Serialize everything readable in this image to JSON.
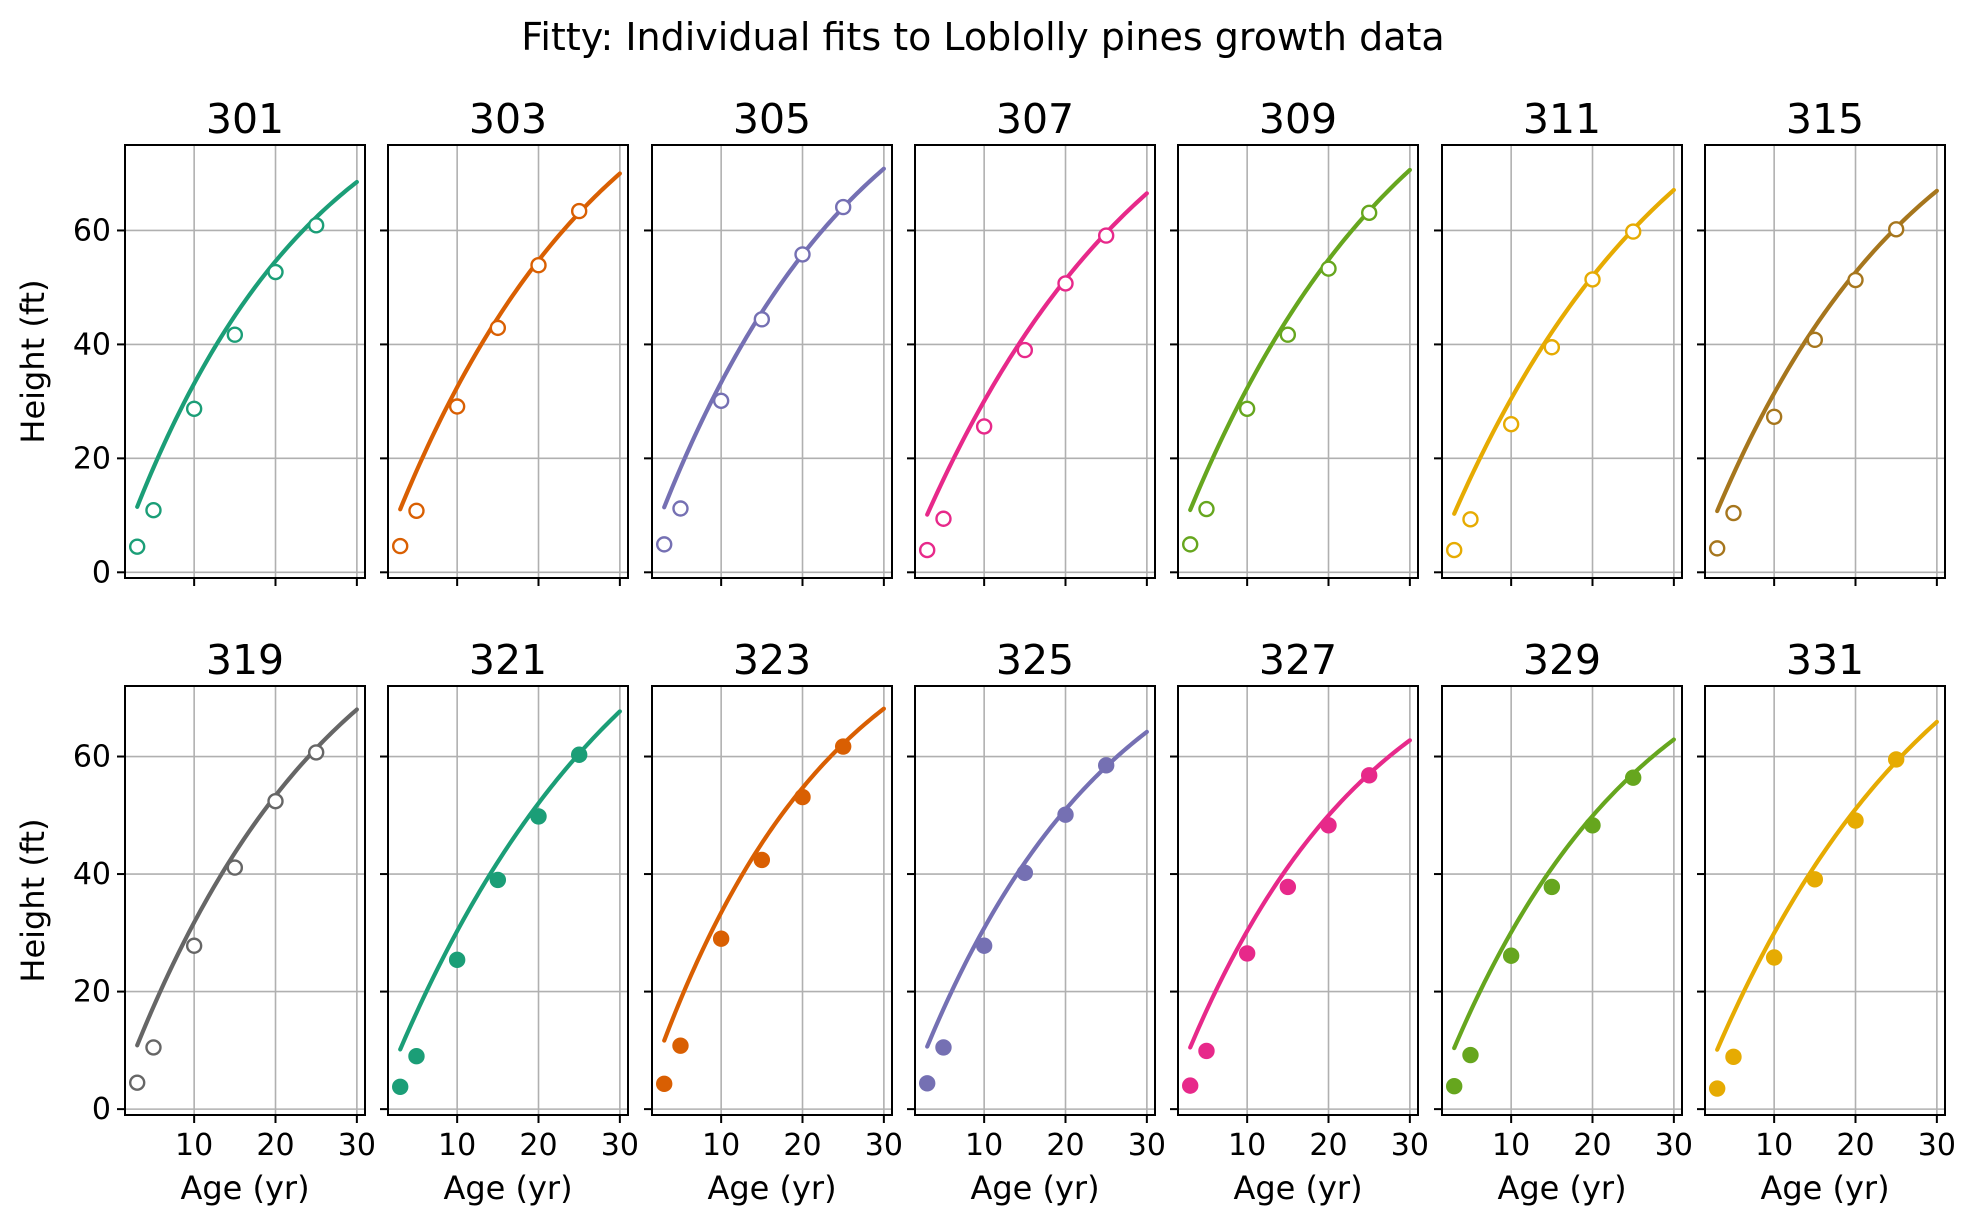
{
  "figure_title": "Fitty: Individual fits to Loblolly pines growth data",
  "colors": {
    "teal": "#1b9e77",
    "orange": "#d95f02",
    "purple": "#7570b3",
    "pink": "#e7298a",
    "green": "#66a61e",
    "yellow": "#e6ab02",
    "brown": "#a6761d",
    "gray": "#666666"
  },
  "chart_data": [
    {
      "type": "line",
      "title": "301",
      "color": "#1b9e77",
      "marker": "open",
      "x": [
        3,
        5,
        10,
        15,
        20,
        25
      ],
      "y": [
        4.5,
        10.9,
        28.7,
        41.7,
        52.7,
        60.9
      ],
      "fit": {
        "asym": 94.1,
        "rate": 0.0434,
        "tmin": 3,
        "tmax": 30
      },
      "xlim": [
        1.5,
        31
      ],
      "ylim": [
        -1,
        75
      ],
      "xticks": [
        10,
        20,
        30
      ],
      "yticks": [
        0,
        20,
        40,
        60
      ],
      "xlabel": "",
      "ylabel": "Height (ft)"
    },
    {
      "type": "line",
      "title": "303",
      "color": "#d95f02",
      "marker": "open",
      "x": [
        3,
        5,
        10,
        15,
        20,
        25
      ],
      "y": [
        4.6,
        10.8,
        29.1,
        42.9,
        53.9,
        63.4
      ],
      "fit": {
        "asym": 103.2,
        "rate": 0.0378,
        "tmin": 3,
        "tmax": 30
      },
      "xlim": [
        1.5,
        31
      ],
      "ylim": [
        -1,
        75
      ],
      "xticks": [
        10,
        20,
        30
      ],
      "yticks": [
        0,
        20,
        40,
        60
      ],
      "xlabel": "",
      "ylabel": ""
    },
    {
      "type": "line",
      "title": "305",
      "color": "#7570b3",
      "marker": "open",
      "x": [
        3,
        5,
        10,
        15,
        20,
        25
      ],
      "y": [
        4.9,
        11.2,
        30.1,
        44.4,
        55.8,
        64.1
      ],
      "fit": {
        "asym": 101.9,
        "rate": 0.0396,
        "tmin": 3,
        "tmax": 30
      },
      "xlim": [
        1.5,
        31
      ],
      "ylim": [
        -1,
        75
      ],
      "xticks": [
        10,
        20,
        30
      ],
      "yticks": [
        0,
        20,
        40,
        60
      ],
      "xlabel": "",
      "ylabel": ""
    },
    {
      "type": "line",
      "title": "307",
      "color": "#e7298a",
      "marker": "open",
      "x": [
        3,
        5,
        10,
        15,
        20,
        25
      ],
      "y": [
        3.9,
        9.4,
        25.6,
        39.0,
        50.7,
        59.1
      ],
      "fit": {
        "asym": 103.5,
        "rate": 0.0343,
        "tmin": 3,
        "tmax": 30
      },
      "xlim": [
        1.5,
        31
      ],
      "ylim": [
        -1,
        75
      ],
      "xticks": [
        10,
        20,
        30
      ],
      "yticks": [
        0,
        20,
        40,
        60
      ],
      "xlabel": "",
      "ylabel": ""
    },
    {
      "type": "line",
      "title": "309",
      "color": "#66a61e",
      "marker": "open",
      "x": [
        3,
        5,
        10,
        15,
        20,
        25
      ],
      "y": [
        4.9,
        11.1,
        28.7,
        41.7,
        53.3,
        63.1
      ],
      "fit": {
        "asym": 107.1,
        "rate": 0.0359,
        "tmin": 3,
        "tmax": 30
      },
      "xlim": [
        1.5,
        31
      ],
      "ylim": [
        -1,
        75
      ],
      "xticks": [
        10,
        20,
        30
      ],
      "yticks": [
        0,
        20,
        40,
        60
      ],
      "xlabel": "",
      "ylabel": ""
    },
    {
      "type": "line",
      "title": "311",
      "color": "#e6ab02",
      "marker": "open",
      "x": [
        3,
        5,
        10,
        15,
        20,
        25
      ],
      "y": [
        3.9,
        9.3,
        26.0,
        39.5,
        51.4,
        59.8
      ],
      "fit": {
        "asym": 103.4,
        "rate": 0.0349,
        "tmin": 3,
        "tmax": 30
      },
      "xlim": [
        1.5,
        31
      ],
      "ylim": [
        -1,
        75
      ],
      "xticks": [
        10,
        20,
        30
      ],
      "yticks": [
        0,
        20,
        40,
        60
      ],
      "xlabel": "",
      "ylabel": ""
    },
    {
      "type": "line",
      "title": "315",
      "color": "#a6761d",
      "marker": "open",
      "x": [
        3,
        5,
        10,
        15,
        20,
        25
      ],
      "y": [
        4.2,
        10.4,
        27.3,
        40.8,
        51.3,
        60.2
      ],
      "fit": {
        "asym": 96.7,
        "rate": 0.0393,
        "tmin": 3,
        "tmax": 30
      },
      "xlim": [
        1.5,
        31
      ],
      "ylim": [
        -1,
        75
      ],
      "xticks": [
        10,
        20,
        30
      ],
      "yticks": [
        0,
        20,
        40,
        60
      ],
      "xlabel": "",
      "ylabel": ""
    },
    {
      "type": "line",
      "title": "319",
      "color": "#666666",
      "marker": "open",
      "x": [
        3,
        5,
        10,
        15,
        20,
        25
      ],
      "y": [
        4.5,
        10.5,
        27.8,
        41.1,
        52.4,
        60.7
      ],
      "fit": {
        "asym": 99.0,
        "rate": 0.0387,
        "tmin": 3,
        "tmax": 30
      },
      "xlim": [
        1.5,
        31
      ],
      "ylim": [
        -1,
        72
      ],
      "xticks": [
        10,
        20,
        30
      ],
      "yticks": [
        0,
        20,
        40,
        60
      ],
      "xlabel": "Age (yr)",
      "ylabel": "Height (ft)"
    },
    {
      "type": "line",
      "title": "321",
      "color": "#1b9e77",
      "marker": "filled",
      "x": [
        3,
        5,
        10,
        15,
        20,
        25
      ],
      "y": [
        3.8,
        9.0,
        25.4,
        39.0,
        49.8,
        60.3
      ],
      "fit": {
        "asym": 107.5,
        "rate": 0.0331,
        "tmin": 3,
        "tmax": 30
      },
      "xlim": [
        1.5,
        31
      ],
      "ylim": [
        -1,
        72
      ],
      "xticks": [
        10,
        20,
        30
      ],
      "yticks": [
        0,
        20,
        40,
        60
      ],
      "xlabel": "Age (yr)",
      "ylabel": ""
    },
    {
      "type": "line",
      "title": "323",
      "color": "#d95f02",
      "marker": "filled",
      "x": [
        3,
        5,
        10,
        15,
        20,
        25
      ],
      "y": [
        4.3,
        10.8,
        29.0,
        42.4,
        53.1,
        61.7
      ],
      "fit": {
        "asym": 91.6,
        "rate": 0.0454,
        "tmin": 3,
        "tmax": 30
      },
      "xlim": [
        1.5,
        31
      ],
      "ylim": [
        -1,
        72
      ],
      "xticks": [
        10,
        20,
        30
      ],
      "yticks": [
        0,
        20,
        40,
        60
      ],
      "xlabel": "Age (yr)",
      "ylabel": ""
    },
    {
      "type": "line",
      "title": "325",
      "color": "#7570b3",
      "marker": "filled",
      "x": [
        3,
        5,
        10,
        15,
        20,
        25
      ],
      "y": [
        4.4,
        10.5,
        27.8,
        40.2,
        50.1,
        58.5
      ],
      "fit": {
        "asym": 89.3,
        "rate": 0.0423,
        "tmin": 3,
        "tmax": 30
      },
      "xlim": [
        1.5,
        31
      ],
      "ylim": [
        -1,
        72
      ],
      "xticks": [
        10,
        20,
        30
      ],
      "yticks": [
        0,
        20,
        40,
        60
      ],
      "xlabel": "Age (yr)",
      "ylabel": ""
    },
    {
      "type": "line",
      "title": "327",
      "color": "#e7298a",
      "marker": "filled",
      "x": [
        3,
        5,
        10,
        15,
        20,
        25
      ],
      "y": [
        4.0,
        9.9,
        26.5,
        37.8,
        48.3,
        56.8
      ],
      "fit": {
        "asym": 86.5,
        "rate": 0.0431,
        "tmin": 3,
        "tmax": 30
      },
      "xlim": [
        1.5,
        31
      ],
      "ylim": [
        -1,
        72
      ],
      "xticks": [
        10,
        20,
        30
      ],
      "yticks": [
        0,
        20,
        40,
        60
      ],
      "xlabel": "Age (yr)",
      "ylabel": ""
    },
    {
      "type": "line",
      "title": "329",
      "color": "#66a61e",
      "marker": "filled",
      "x": [
        3,
        5,
        10,
        15,
        20,
        25
      ],
      "y": [
        3.9,
        9.2,
        26.1,
        37.8,
        48.3,
        56.4
      ],
      "fit": {
        "asym": 87.9,
        "rate": 0.0419,
        "tmin": 3,
        "tmax": 30
      },
      "xlim": [
        1.5,
        31
      ],
      "ylim": [
        -1,
        72
      ],
      "xticks": [
        10,
        20,
        30
      ],
      "yticks": [
        0,
        20,
        40,
        60
      ],
      "xlabel": "Age (yr)",
      "ylabel": ""
    },
    {
      "type": "line",
      "title": "331",
      "color": "#e6ab02",
      "marker": "filled",
      "x": [
        3,
        5,
        10,
        15,
        20,
        25
      ],
      "y": [
        3.5,
        8.9,
        25.8,
        39.1,
        49.1,
        59.5
      ],
      "fit": {
        "asym": 101.2,
        "rate": 0.0351,
        "tmin": 3,
        "tmax": 30
      },
      "xlim": [
        1.5,
        31
      ],
      "ylim": [
        -1,
        72
      ],
      "xticks": [
        10,
        20,
        30
      ],
      "yticks": [
        0,
        20,
        40,
        60
      ],
      "xlabel": "Age (yr)",
      "ylabel": ""
    }
  ]
}
